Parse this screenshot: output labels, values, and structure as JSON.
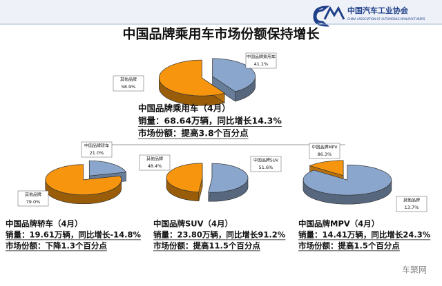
{
  "header": {
    "org": "中国汽车工业协会",
    "org_en": "CHINA ASSOCIATION OF AUTOMOBILE MANUFACTURERS"
  },
  "title": "中国品牌乘用车市场份额保持增长",
  "watermark": "车聚网",
  "chart_data": [
    {
      "type": "pie",
      "title": "中国品牌乘用车（4月）",
      "notes": [
        "销量：68.64万辆，同比增长14.3%",
        "市场份额：提高3.8个百分点"
      ],
      "categories": [
        "中国品牌乘用车",
        "其他品牌"
      ],
      "values": [
        41.1,
        58.9
      ],
      "value_labels": [
        "41.1%",
        "58.9%"
      ],
      "colors": [
        "#8aa6cc",
        "#f7960e"
      ]
    },
    {
      "type": "pie",
      "title": "中国品牌轿车（4月）",
      "notes": [
        "销量：19.61万辆，同比增长-14.8%",
        "市场份额：下降1.3个百分点"
      ],
      "categories": [
        "中国品牌轿车",
        "其他品牌"
      ],
      "values": [
        21.0,
        79.0
      ],
      "value_labels": [
        "21.0%",
        "79.0%"
      ],
      "colors": [
        "#8aa6cc",
        "#f7960e"
      ]
    },
    {
      "type": "pie",
      "title": "中国品牌SUV（4月）",
      "notes": [
        "销量：23.80万辆，同比增长91.2%",
        "市场份额：提高11.5个百分点"
      ],
      "categories": [
        "中国品牌SUV",
        "其他品牌"
      ],
      "values": [
        51.6,
        48.4
      ],
      "value_labels": [
        "51.6%",
        "48.4%"
      ],
      "colors": [
        "#8aa6cc",
        "#f7960e"
      ]
    },
    {
      "type": "pie",
      "title": "中国品牌MPV（4月）",
      "notes": [
        "销量：14.41万辆，同比增长24.3%",
        "市场份额：提高1.5个百分点"
      ],
      "categories": [
        "中国品牌MPV",
        "其他品牌"
      ],
      "values": [
        86.3,
        13.7
      ],
      "value_labels": [
        "86.3%",
        "13.7%"
      ],
      "colors": [
        "#8aa6cc",
        "#f7960e"
      ]
    }
  ]
}
